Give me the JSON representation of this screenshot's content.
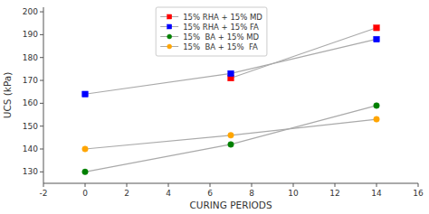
{
  "chart_data": {
    "type": "line",
    "xlabel": "CURING PERIODS",
    "ylabel": "UCS (kPa)",
    "x": [
      0,
      7,
      14
    ],
    "color": "#aaaaaa",
    "series": [
      {
        "name": "15% RHA + 15% MD",
        "color": "#ff0000",
        "marker": "square",
        "values": [
          null,
          171,
          193
        ]
      },
      {
        "name": "15% RHA + 15% FA",
        "color": "#0000ff",
        "marker": "square",
        "values": [
          164,
          173,
          188
        ]
      },
      {
        "name": "15%  BA + 15% MD",
        "color": "#008000",
        "marker": "circle",
        "values": [
          130,
          142,
          159
        ]
      },
      {
        "name": "15%  BA + 15%  FA",
        "color": "#ffa500",
        "marker": "circle",
        "values": [
          140,
          146,
          153
        ]
      }
    ],
    "xlim": [
      -2,
      16
    ],
    "ylim": [
      125,
      202
    ],
    "xticks": [
      -2,
      0,
      2,
      4,
      6,
      8,
      10,
      12,
      14,
      16
    ],
    "yticks": [
      130,
      140,
      150,
      160,
      170,
      180,
      190,
      200
    ],
    "grid": false,
    "legend": "top"
  }
}
